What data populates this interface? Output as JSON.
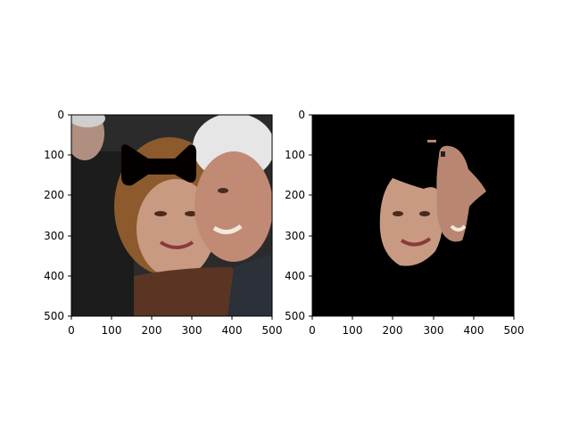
{
  "figure": {
    "panels": [
      {
        "name": "original-with-mask",
        "image": {
          "description_icon": "photo-two-faces-with-bowtie-occlusion-icon",
          "colors": {
            "background_dark": "#2a2a2a",
            "left_coat": "#1d1d1d",
            "skin": "#c99a82",
            "skin_shadow": "#a97760",
            "hair_brown": "#8c5a2c",
            "hair_white": "#e6e6e6",
            "scarf": "#5a3524",
            "occlusion": "#050000"
          }
        },
        "xaxis": {
          "range": [
            0,
            500
          ],
          "ticks": [
            "0",
            "100",
            "200",
            "300",
            "400",
            "500"
          ]
        },
        "yaxis": {
          "range": [
            0,
            500
          ],
          "ticks": [
            "0",
            "100",
            "200",
            "300",
            "400",
            "500"
          ]
        }
      },
      {
        "name": "segmented-faces",
        "image": {
          "description_icon": "segmented-face-regions-icon",
          "colors": {
            "background": "#000000",
            "skin": "#c99a82",
            "skin_shadow": "#a97760"
          }
        },
        "xaxis": {
          "range": [
            0,
            500
          ],
          "ticks": [
            "0",
            "100",
            "200",
            "300",
            "400",
            "500"
          ]
        },
        "yaxis": {
          "range": [
            0,
            500
          ],
          "ticks": [
            "0",
            "100",
            "200",
            "300",
            "400",
            "500"
          ]
        }
      }
    ]
  }
}
